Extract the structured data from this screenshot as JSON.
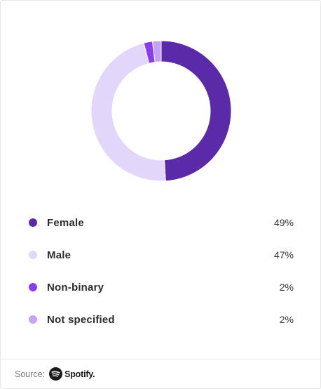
{
  "chart_data": {
    "type": "pie",
    "variant": "donut",
    "categories": [
      "Female",
      "Male",
      "Non-binary",
      "Not specified"
    ],
    "values": [
      49,
      47,
      2,
      2
    ],
    "value_labels": [
      "49%",
      "47%",
      "2%",
      "2%"
    ],
    "colors": [
      "#5b2aa8",
      "#e2d6fb",
      "#8a3cf0",
      "#c4a3f5"
    ],
    "legend_placement": "bottom"
  },
  "footer": {
    "source_label": "Source:",
    "brand": "Spotify."
  },
  "icons": {
    "brand_logo": "spotify-icon"
  }
}
